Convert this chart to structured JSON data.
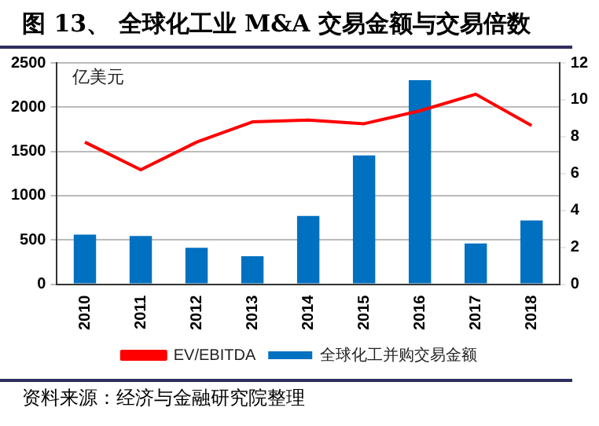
{
  "chart_data": {
    "type": "bar",
    "title": "图 13、 全球化工业 M&A 交易金额与交易倍数",
    "ylabel": "亿美元",
    "categories": [
      "2010",
      "2011",
      "2012",
      "2013",
      "2014",
      "2015",
      "2016",
      "2017",
      "2018"
    ],
    "series": [
      {
        "name": "全球化工并购交易金额",
        "color": "#0070c0",
        "values": [
          560,
          545,
          410,
          315,
          770,
          1455,
          2305,
          460,
          720
        ]
      },
      {
        "name": "EV/EBITDA",
        "type": "line",
        "axis": "y2",
        "color": "#ff0000",
        "values": [
          7.7,
          6.2,
          7.7,
          8.8,
          8.9,
          8.7,
          9.4,
          10.3,
          8.6
        ]
      }
    ],
    "ylim": [
      0,
      2500
    ],
    "yticks": [
      0,
      500,
      1000,
      1500,
      2000,
      2500
    ],
    "y2lim": [
      0,
      12
    ],
    "y2ticks": [
      0,
      2,
      4,
      6,
      8,
      10,
      12
    ],
    "grid": "y",
    "legend": "bottom",
    "marker": "none",
    "annotations": [
      "资料来源：经济与金融研究院整理"
    ]
  }
}
